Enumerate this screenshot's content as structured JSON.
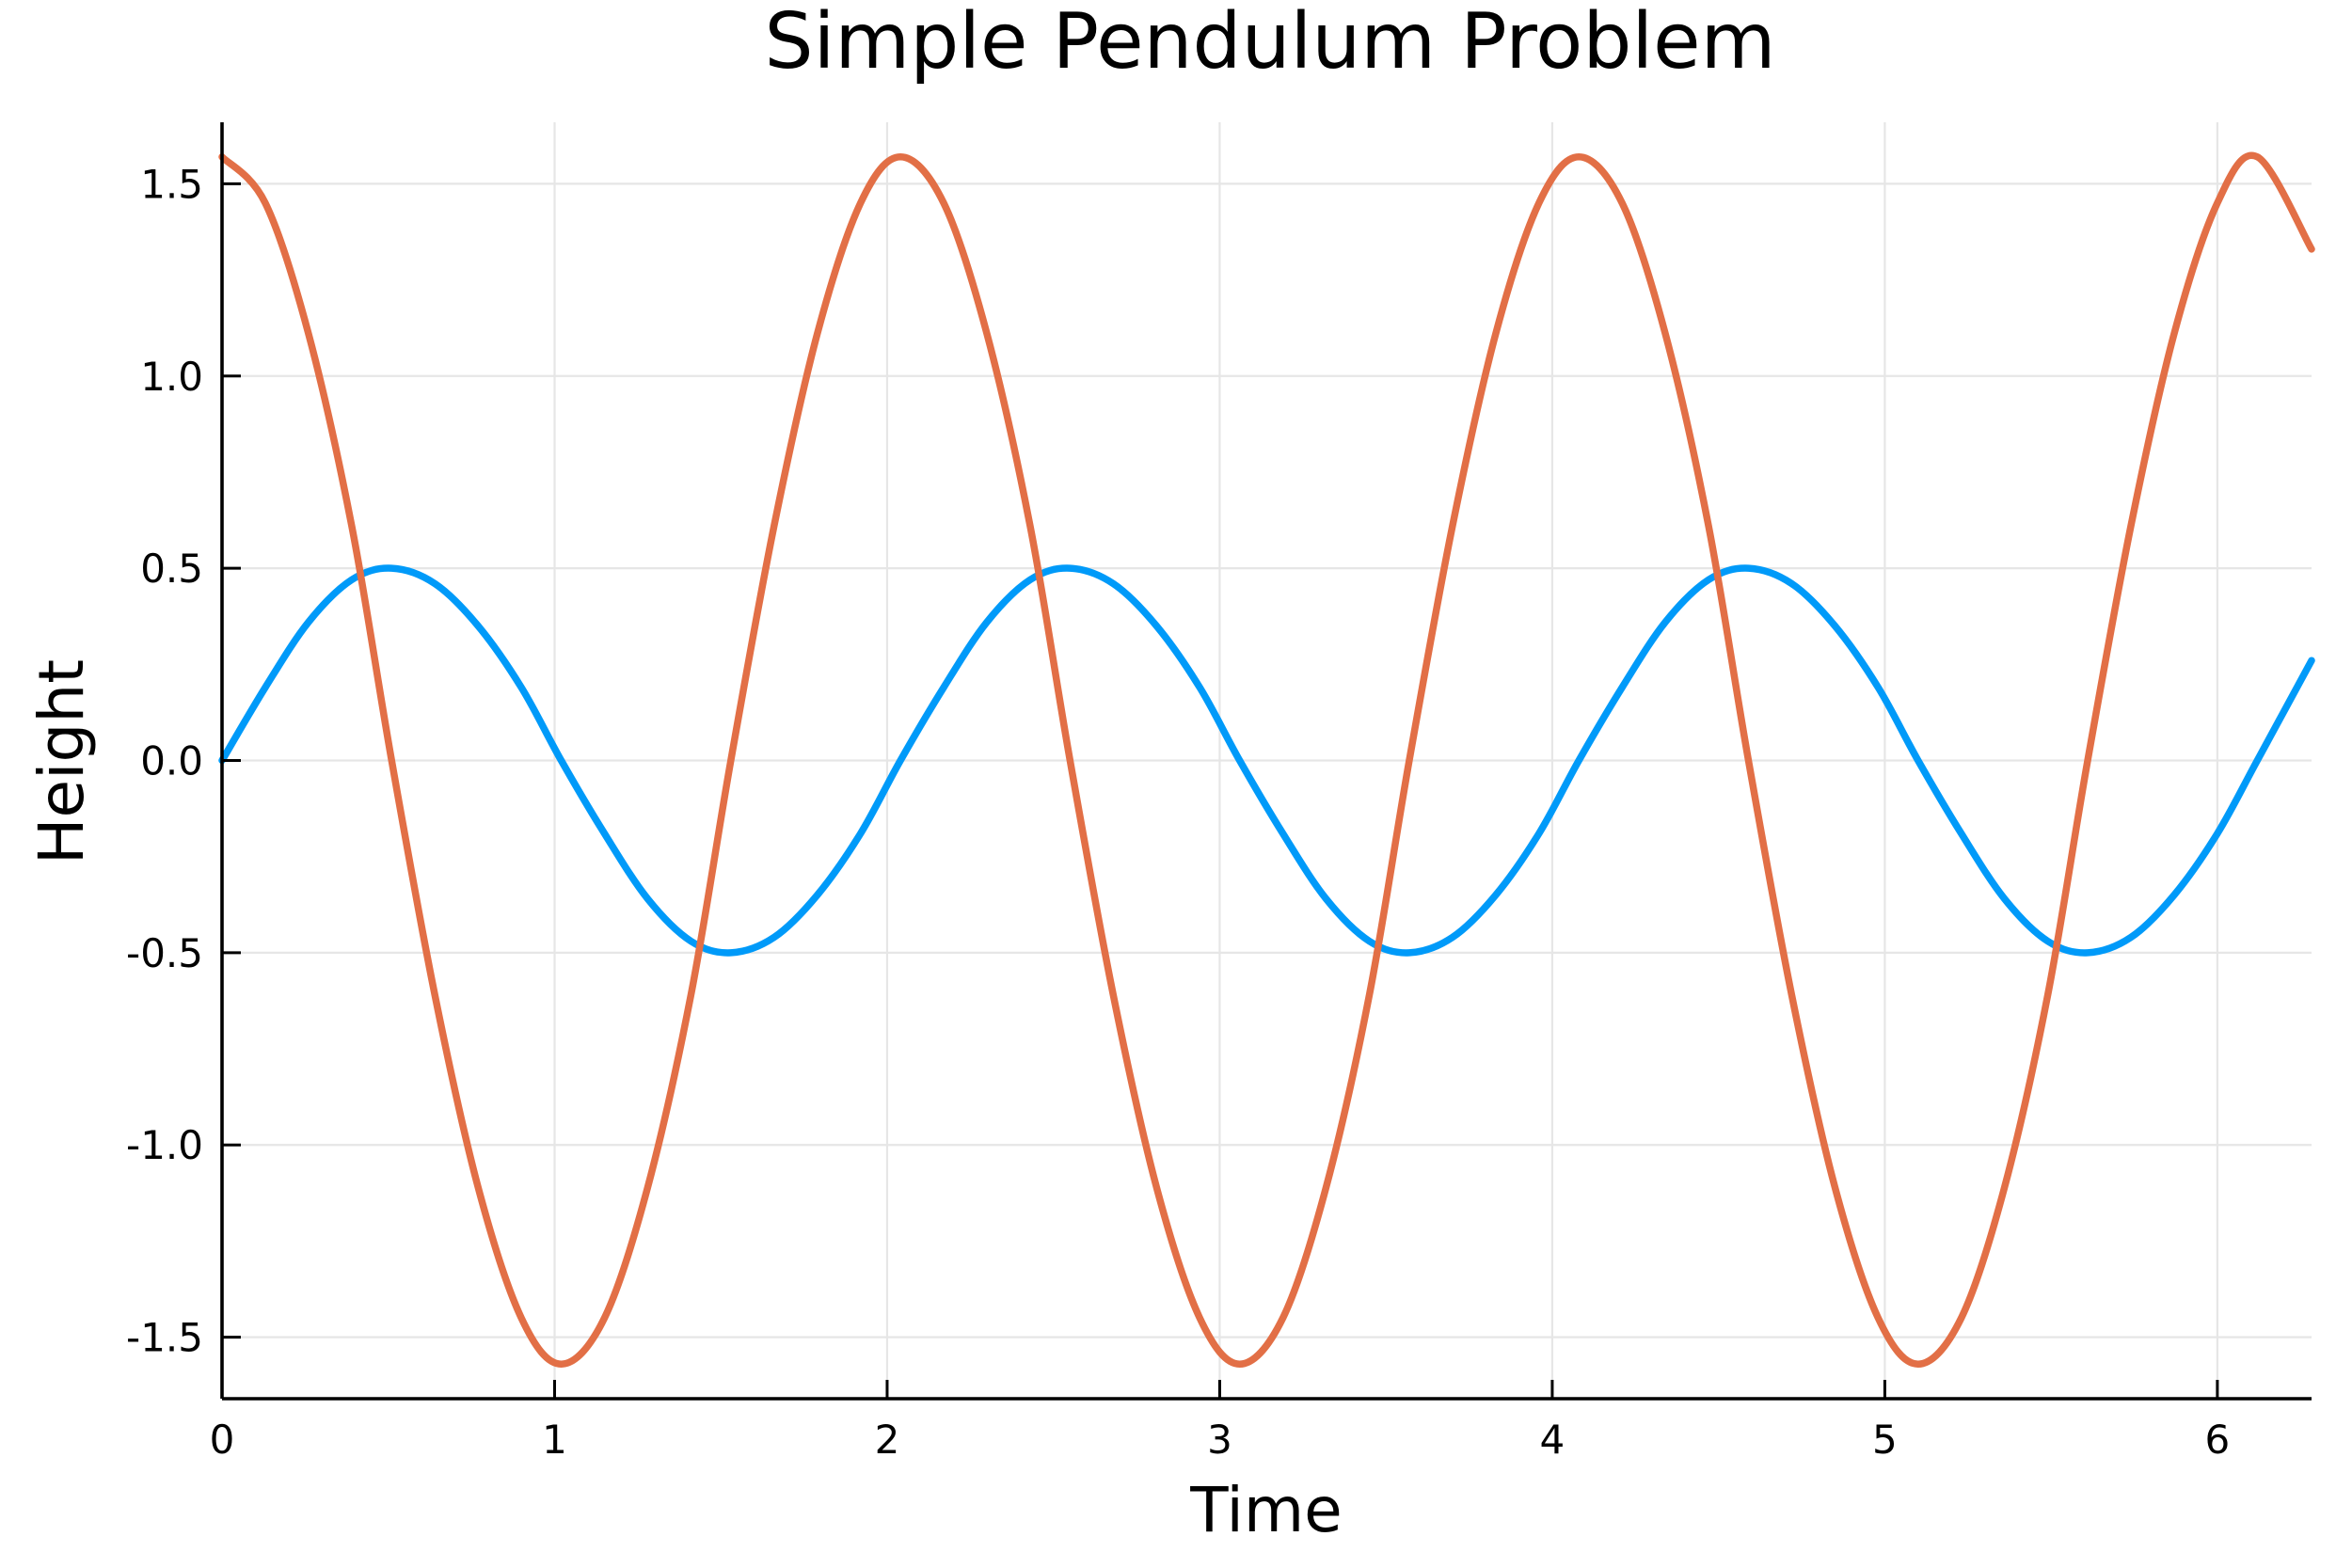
{
  "chart_data": {
    "type": "line",
    "title": "Simple Pendulum Problem",
    "xlabel": "Time",
    "ylabel": "Height",
    "xlim": [
      0,
      6.2832
    ],
    "ylim": [
      -1.66,
      1.66
    ],
    "x_ticks": [
      0,
      1,
      2,
      3,
      4,
      5,
      6
    ],
    "x_tick_labels": [
      "0",
      "1",
      "2",
      "3",
      "4",
      "5",
      "6"
    ],
    "y_ticks": [
      -1.5,
      -1.0,
      -0.5,
      0.0,
      0.5,
      1.0,
      1.5
    ],
    "y_tick_labels": [
      "-1.5",
      "-1.0",
      "-0.5",
      "0.0",
      "0.5",
      "1.0",
      "1.5"
    ],
    "grid": true,
    "legend": false,
    "series": [
      {
        "color": "#009af9",
        "x": [
          0,
          0.13,
          0.26,
          0.39,
          0.51,
          0.64,
          0.77,
          0.9,
          1.02,
          1.15,
          1.28,
          1.41,
          1.53,
          1.66,
          1.79,
          1.92,
          2.04,
          2.17,
          2.3,
          2.43,
          2.55,
          2.68,
          2.81,
          2.94,
          3.06,
          3.19,
          3.32,
          3.45,
          3.57,
          3.7,
          3.83,
          3.96,
          4.08,
          4.21,
          4.34,
          4.47,
          4.59,
          4.72,
          4.85,
          4.98,
          5.1,
          5.23,
          5.36,
          5.49,
          5.61,
          5.74,
          5.87,
          6.0,
          6.12,
          6.2832
        ],
        "values": [
          0.0,
          0.19,
          0.36,
          0.47,
          0.5,
          0.46,
          0.35,
          0.19,
          0.0,
          -0.19,
          -0.36,
          -0.47,
          -0.5,
          -0.46,
          -0.35,
          -0.19,
          0.0,
          0.19,
          0.36,
          0.47,
          0.5,
          0.46,
          0.35,
          0.19,
          0.0,
          -0.19,
          -0.36,
          -0.47,
          -0.5,
          -0.46,
          -0.35,
          -0.19,
          0.0,
          0.19,
          0.36,
          0.47,
          0.5,
          0.46,
          0.35,
          0.19,
          0.0,
          -0.19,
          -0.36,
          -0.47,
          -0.5,
          -0.46,
          -0.35,
          -0.19,
          0.0,
          0.26
        ]
      },
      {
        "color": "#e26f46",
        "x": [
          0,
          0.13,
          0.26,
          0.39,
          0.51,
          0.64,
          0.77,
          0.9,
          1.02,
          1.15,
          1.28,
          1.41,
          1.53,
          1.66,
          1.79,
          1.92,
          2.04,
          2.17,
          2.3,
          2.43,
          2.55,
          2.68,
          2.81,
          2.94,
          3.06,
          3.19,
          3.32,
          3.45,
          3.57,
          3.7,
          3.83,
          3.96,
          4.08,
          4.21,
          4.34,
          4.47,
          4.59,
          4.72,
          4.85,
          4.98,
          5.1,
          5.23,
          5.36,
          5.49,
          5.61,
          5.74,
          5.87,
          6.0,
          6.12,
          6.2832
        ],
        "values": [
          1.57,
          1.45,
          1.11,
          0.61,
          0.0,
          -0.61,
          -1.11,
          -1.45,
          -1.57,
          -1.45,
          -1.11,
          -0.61,
          0.0,
          0.61,
          1.11,
          1.45,
          1.57,
          1.45,
          1.11,
          0.61,
          0.0,
          -0.61,
          -1.11,
          -1.45,
          -1.57,
          -1.45,
          -1.11,
          -0.61,
          0.0,
          0.61,
          1.11,
          1.45,
          1.57,
          1.45,
          1.11,
          0.61,
          0.0,
          -0.61,
          -1.11,
          -1.45,
          -1.57,
          -1.45,
          -1.11,
          -0.61,
          0.0,
          0.61,
          1.11,
          1.45,
          1.57,
          1.33
        ]
      }
    ]
  }
}
